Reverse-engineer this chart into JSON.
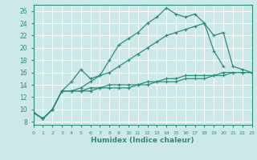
{
  "xlabel": "Humidex (Indice chaleur)",
  "background_color": "#cce8e8",
  "grid_color": "#ffffff",
  "line_color": "#2e8b7a",
  "xlim": [
    0,
    23
  ],
  "ylim": [
    7.5,
    27
  ],
  "xticks": [
    0,
    1,
    2,
    3,
    4,
    5,
    6,
    7,
    8,
    9,
    10,
    11,
    12,
    13,
    14,
    15,
    16,
    17,
    18,
    19,
    20,
    21,
    22,
    23
  ],
  "yticks": [
    8,
    10,
    12,
    14,
    16,
    18,
    20,
    22,
    24,
    26
  ],
  "series": [
    {
      "x": [
        0,
        1,
        2,
        3,
        4,
        5,
        6,
        7,
        8,
        9,
        10,
        11,
        12,
        13,
        14,
        15,
        16,
        17,
        18,
        19,
        20
      ],
      "y": [
        9.5,
        8.5,
        10.0,
        13.0,
        14.5,
        16.5,
        15.0,
        15.5,
        18.0,
        20.5,
        21.5,
        22.5,
        24.0,
        25.0,
        26.5,
        25.5,
        25.0,
        25.5,
        24.0,
        19.5,
        17.0
      ]
    },
    {
      "x": [
        0,
        1,
        2,
        3,
        4,
        5,
        6,
        7,
        8,
        9,
        10,
        11,
        12,
        13,
        14,
        15,
        16,
        17,
        18,
        19,
        20,
        21,
        22,
        23
      ],
      "y": [
        9.5,
        8.5,
        10.0,
        13.0,
        13.0,
        13.5,
        14.5,
        15.5,
        16.0,
        17.0,
        18.0,
        19.0,
        20.0,
        21.0,
        22.0,
        22.5,
        23.0,
        23.5,
        24.0,
        22.0,
        22.5,
        17.0,
        16.5,
        16.0
      ]
    },
    {
      "x": [
        0,
        1,
        2,
        3,
        4,
        5,
        6,
        7,
        8,
        9,
        10,
        11,
        12,
        13,
        14,
        15,
        16,
        17,
        18,
        19,
        20,
        21,
        22,
        23
      ],
      "y": [
        9.5,
        8.5,
        10.0,
        13.0,
        13.0,
        13.0,
        13.5,
        13.5,
        14.0,
        14.0,
        14.0,
        14.0,
        14.5,
        14.5,
        15.0,
        15.0,
        15.5,
        15.5,
        15.5,
        15.5,
        16.0,
        16.0,
        16.0,
        16.0
      ]
    },
    {
      "x": [
        0,
        1,
        2,
        3,
        4,
        5,
        6,
        7,
        8,
        9,
        10,
        11,
        12,
        13,
        14,
        15,
        16,
        17,
        18,
        19,
        20,
        21,
        22,
        23
      ],
      "y": [
        9.5,
        8.5,
        10.0,
        13.0,
        13.0,
        13.0,
        13.0,
        13.5,
        13.5,
        13.5,
        13.5,
        14.0,
        14.0,
        14.5,
        14.5,
        14.5,
        15.0,
        15.0,
        15.0,
        15.5,
        15.5,
        16.0,
        16.0,
        16.0
      ]
    }
  ]
}
